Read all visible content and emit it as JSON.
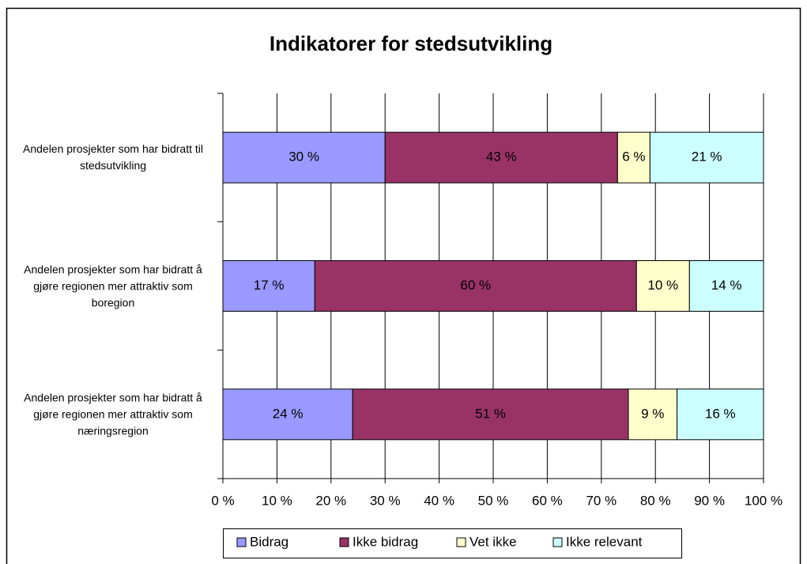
{
  "chart_data": {
    "type": "stacked_bar_horizontal",
    "title": "Indikatorer for stedsutvikling",
    "categories": [
      "Andelen prosjekter som har bidratt til stedsutvikling",
      "Andelen prosjekter som har bidratt å gjøre regionen mer attraktiv som boregion",
      "Andelen prosjekter som har bidratt å gjøre regionen mer attraktiv som næringsregion"
    ],
    "series": [
      {
        "name": "Bidrag",
        "color": "#9999ff",
        "values": [
          30,
          17,
          24
        ],
        "value_labels": [
          "30 %",
          "17 %",
          "24 %"
        ]
      },
      {
        "name": "Ikke bidrag",
        "color": "#993366",
        "values": [
          43,
          59.5,
          51
        ],
        "value_labels": [
          "43 %",
          "60 %",
          "51 %"
        ]
      },
      {
        "name": "Vet ikke",
        "color": "#ffffcc",
        "values": [
          6,
          9.8,
          9
        ],
        "value_labels": [
          "6 %",
          "10 %",
          "9 %"
        ]
      },
      {
        "name": "Ikke relevant",
        "color": "#ccffff",
        "values": [
          21,
          13.7,
          16
        ],
        "value_labels": [
          "21 %",
          "14 %",
          "16 %"
        ]
      }
    ],
    "xlim": [
      0,
      100
    ],
    "xticks": [
      {
        "value": 0,
        "label": "0 %"
      },
      {
        "value": 10,
        "label": "10 %"
      },
      {
        "value": 20,
        "label": "20 %"
      },
      {
        "value": 30,
        "label": "30 %"
      },
      {
        "value": 40,
        "label": "40 %"
      },
      {
        "value": 50,
        "label": "50 %"
      },
      {
        "value": 60,
        "label": "60 %"
      },
      {
        "value": 70,
        "label": "70 %"
      },
      {
        "value": 80,
        "label": "80 %"
      },
      {
        "value": 90,
        "label": "90 %"
      },
      {
        "value": 100,
        "label": "100 %"
      }
    ],
    "grid": true,
    "legend": "bottom"
  }
}
